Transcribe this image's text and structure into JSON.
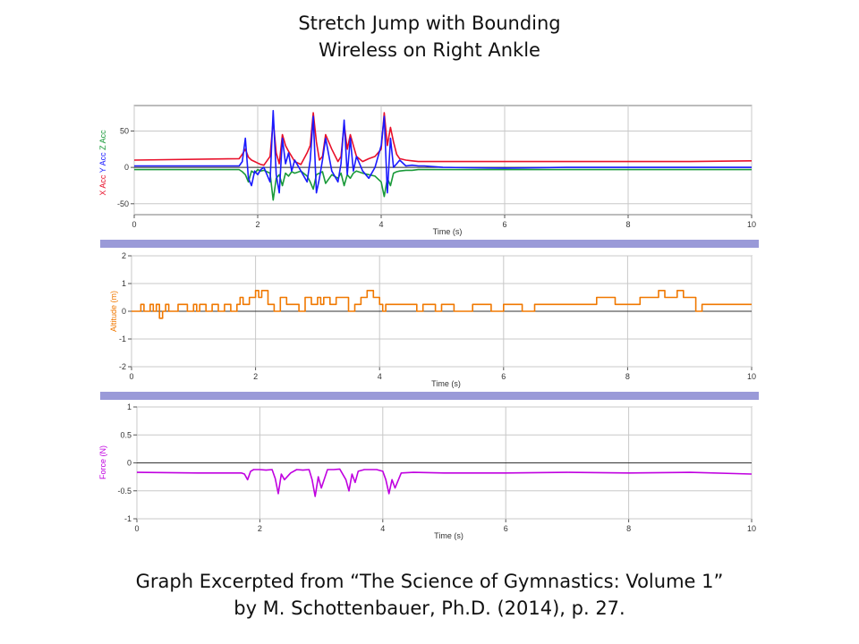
{
  "page": {
    "title_line1": "Stretch Jump with Bounding",
    "title_line2": "Wireless on Right Ankle",
    "caption_line1": "Graph Excerpted from “The Science of Gymnastics: Volume 1”",
    "caption_line2": "by M. Schottenbauer, Ph.D. (2014), p. 27."
  },
  "colors": {
    "xacc": "#e8102a",
    "yacc": "#1a1aff",
    "zacc": "#1a9a3a",
    "altitude": "#f07800",
    "force": "#c000e0",
    "divider": "#9a9ad8",
    "grid": "#c8c8c8"
  },
  "chart_data": [
    {
      "type": "line",
      "xlabel": "Time (s)",
      "ylabel_parts": [
        "X Acc",
        "Y Acc",
        "Z Acc"
      ],
      "xlim": [
        0,
        10
      ],
      "ylim": [
        -65,
        85
      ],
      "xticks": [
        0,
        2,
        4,
        6,
        8,
        10
      ],
      "yticks": [
        50,
        0,
        -50
      ],
      "grid": true,
      "series": [
        {
          "name": "X Acc",
          "color": "#e8102a",
          "x": [
            0,
            1.7,
            1.75,
            1.8,
            1.85,
            1.9,
            1.95,
            2.0,
            2.05,
            2.1,
            2.2,
            2.25,
            2.3,
            2.35,
            2.4,
            2.45,
            2.5,
            2.55,
            2.6,
            2.7,
            2.8,
            2.85,
            2.9,
            2.95,
            3.0,
            3.05,
            3.1,
            3.2,
            3.3,
            3.35,
            3.4,
            3.45,
            3.5,
            3.55,
            3.6,
            3.7,
            3.8,
            3.9,
            4.0,
            4.05,
            4.1,
            4.15,
            4.2,
            4.25,
            4.3,
            4.4,
            4.5,
            4.6,
            4.7,
            5,
            6,
            7,
            8,
            9,
            10
          ],
          "y": [
            10,
            12,
            18,
            25,
            14,
            10,
            8,
            6,
            4,
            3,
            15,
            65,
            20,
            5,
            45,
            30,
            22,
            15,
            8,
            4,
            20,
            30,
            75,
            35,
            10,
            15,
            45,
            25,
            8,
            15,
            60,
            25,
            45,
            30,
            15,
            8,
            12,
            15,
            25,
            75,
            30,
            55,
            35,
            18,
            12,
            10,
            9,
            8,
            8,
            8,
            8,
            8,
            8,
            8,
            9
          ]
        },
        {
          "name": "Y Acc",
          "color": "#1a1aff",
          "x": [
            0,
            1.7,
            1.75,
            1.8,
            1.85,
            1.9,
            1.95,
            2.0,
            2.05,
            2.1,
            2.2,
            2.25,
            2.3,
            2.35,
            2.4,
            2.45,
            2.5,
            2.55,
            2.6,
            2.7,
            2.8,
            2.85,
            2.9,
            2.95,
            3.0,
            3.05,
            3.1,
            3.2,
            3.3,
            3.35,
            3.4,
            3.45,
            3.5,
            3.55,
            3.6,
            3.7,
            3.8,
            3.9,
            4.0,
            4.05,
            4.1,
            4.15,
            4.2,
            4.25,
            4.3,
            4.4,
            4.5,
            4.6,
            4.7,
            5,
            6,
            7,
            8,
            9,
            10
          ],
          "y": [
            2,
            2,
            8,
            40,
            -15,
            -25,
            -5,
            -10,
            -3,
            0,
            -20,
            78,
            -10,
            -35,
            40,
            5,
            20,
            -5,
            10,
            -5,
            -20,
            10,
            70,
            -35,
            -15,
            10,
            40,
            -5,
            -20,
            5,
            65,
            -10,
            40,
            -5,
            15,
            -5,
            -15,
            0,
            30,
            70,
            -35,
            40,
            0,
            5,
            10,
            2,
            3,
            2,
            2,
            0,
            -1,
            0,
            0,
            0,
            0
          ]
        },
        {
          "name": "Z Acc",
          "color": "#1a9a3a",
          "x": [
            0,
            1.7,
            1.75,
            1.8,
            1.85,
            1.9,
            1.95,
            2.0,
            2.05,
            2.1,
            2.2,
            2.25,
            2.3,
            2.35,
            2.4,
            2.45,
            2.5,
            2.55,
            2.6,
            2.7,
            2.8,
            2.85,
            2.9,
            2.95,
            3.0,
            3.05,
            3.1,
            3.2,
            3.3,
            3.35,
            3.4,
            3.45,
            3.5,
            3.55,
            3.6,
            3.7,
            3.8,
            3.9,
            4.0,
            4.05,
            4.1,
            4.15,
            4.2,
            4.25,
            4.3,
            4.4,
            4.5,
            4.6,
            4.7,
            5,
            6,
            7,
            8,
            9,
            10
          ],
          "y": [
            -3,
            -3,
            -6,
            -10,
            -20,
            -5,
            -8,
            -3,
            -5,
            -4,
            -8,
            -45,
            -15,
            -10,
            -25,
            -8,
            -12,
            -6,
            -8,
            -5,
            -12,
            -20,
            -30,
            -10,
            -8,
            -6,
            -22,
            -10,
            -15,
            -8,
            -25,
            -10,
            -15,
            -8,
            -5,
            -8,
            -10,
            -12,
            -20,
            -40,
            -15,
            -25,
            -8,
            -6,
            -5,
            -4,
            -4,
            -3,
            -3,
            -3,
            -3,
            -3,
            -3,
            -3,
            -3
          ]
        }
      ]
    },
    {
      "type": "line",
      "xlabel": "Time (s)",
      "ylabel": "Altitude (m)",
      "xlim": [
        0,
        10
      ],
      "ylim": [
        -2,
        2
      ],
      "xticks": [
        0,
        2,
        4,
        6,
        8,
        10
      ],
      "yticks": [
        2,
        1,
        0,
        -1,
        -2
      ],
      "grid": true,
      "series": [
        {
          "name": "",
          "color": "#f07800",
          "x": [
            0,
            0.1,
            0.15,
            0.2,
            0.3,
            0.35,
            0.4,
            0.45,
            0.5,
            0.55,
            0.6,
            0.7,
            0.75,
            0.85,
            0.9,
            1.0,
            1.05,
            1.1,
            1.2,
            1.3,
            1.4,
            1.5,
            1.6,
            1.7,
            1.75,
            1.8,
            1.9,
            2.0,
            2.05,
            2.1,
            2.2,
            2.3,
            2.4,
            2.5,
            2.6,
            2.7,
            2.8,
            2.9,
            3.0,
            3.05,
            3.1,
            3.2,
            3.3,
            3.4,
            3.5,
            3.6,
            3.7,
            3.8,
            3.9,
            4.0,
            4.05,
            4.1,
            4.2,
            4.3,
            4.5,
            4.6,
            4.7,
            4.8,
            4.9,
            5.0,
            5.2,
            5.5,
            5.8,
            6.0,
            6.3,
            6.5,
            6.8,
            7.0,
            7.2,
            7.5,
            7.8,
            8.0,
            8.2,
            8.4,
            8.5,
            8.6,
            8.7,
            8.8,
            8.9,
            9.0,
            9.1,
            9.2,
            9.4,
            9.6,
            9.8,
            10
          ],
          "y": [
            0,
            0,
            0.25,
            0,
            0.25,
            0,
            0.25,
            -0.25,
            0,
            0.25,
            0,
            0,
            0.25,
            0.25,
            0,
            0.25,
            0,
            0.25,
            0,
            0.25,
            0,
            0.25,
            0,
            0.25,
            0.5,
            0.25,
            0.5,
            0.75,
            0.5,
            0.75,
            0.25,
            0,
            0.5,
            0.25,
            0.25,
            0,
            0.5,
            0.25,
            0.5,
            0.25,
            0.5,
            0.25,
            0.5,
            0.5,
            0,
            0.25,
            0.5,
            0.75,
            0.5,
            0.25,
            0,
            0.25,
            0.25,
            0.25,
            0.25,
            0,
            0.25,
            0.25,
            0,
            0.25,
            0,
            0.25,
            0,
            0.25,
            0,
            0.25,
            0.25,
            0.25,
            0.25,
            0.5,
            0.25,
            0.25,
            0.5,
            0.5,
            0.75,
            0.5,
            0.5,
            0.75,
            0.5,
            0.5,
            0,
            0.25,
            0.25,
            0.25,
            0.25,
            0.25
          ]
        }
      ]
    },
    {
      "type": "line",
      "xlabel": "Time (s)",
      "ylabel": "Force (N)",
      "xlim": [
        0,
        10
      ],
      "ylim": [
        -1.0,
        1.0
      ],
      "xticks": [
        0,
        2,
        4,
        6,
        8,
        10
      ],
      "yticks": [
        1.0,
        0.5,
        0.0,
        -0.5,
        -1.0
      ],
      "grid": true,
      "series": [
        {
          "name": "",
          "color": "#c000e0",
          "x": [
            0,
            1.0,
            1.7,
            1.75,
            1.8,
            1.85,
            1.9,
            2.0,
            2.1,
            2.2,
            2.25,
            2.3,
            2.35,
            2.4,
            2.5,
            2.6,
            2.7,
            2.8,
            2.85,
            2.9,
            2.95,
            3.0,
            3.1,
            3.2,
            3.3,
            3.4,
            3.45,
            3.5,
            3.55,
            3.6,
            3.7,
            3.8,
            3.9,
            4.0,
            4.05,
            4.1,
            4.15,
            4.2,
            4.3,
            4.5,
            5,
            6,
            7,
            8,
            9,
            10
          ],
          "y": [
            -0.17,
            -0.18,
            -0.18,
            -0.2,
            -0.3,
            -0.15,
            -0.12,
            -0.12,
            -0.13,
            -0.12,
            -0.28,
            -0.55,
            -0.2,
            -0.3,
            -0.18,
            -0.12,
            -0.13,
            -0.12,
            -0.3,
            -0.6,
            -0.25,
            -0.45,
            -0.12,
            -0.12,
            -0.11,
            -0.3,
            -0.5,
            -0.2,
            -0.35,
            -0.15,
            -0.12,
            -0.12,
            -0.12,
            -0.15,
            -0.3,
            -0.55,
            -0.3,
            -0.45,
            -0.18,
            -0.17,
            -0.18,
            -0.18,
            -0.17,
            -0.18,
            -0.17,
            -0.2
          ]
        }
      ]
    }
  ]
}
